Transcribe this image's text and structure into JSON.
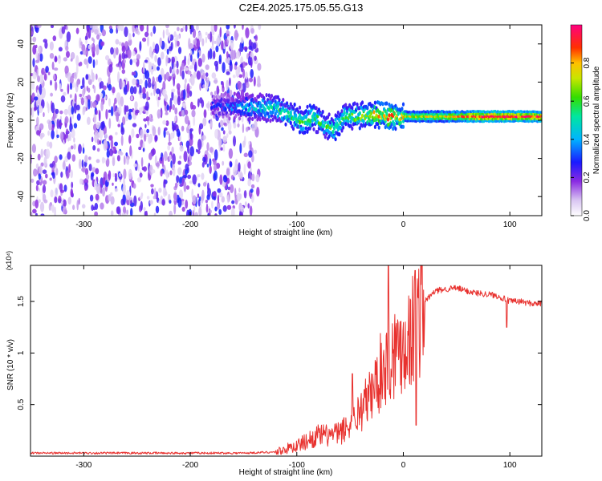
{
  "title": "C2E4.2025.175.05.55.G13",
  "chart_data": [
    {
      "type": "heatmap",
      "xlabel": "Height of straight line (km)",
      "ylabel": "Frequency (Hz)",
      "xlim": [
        -350,
        130
      ],
      "ylim": [
        -50,
        50
      ],
      "xticks": [
        -300,
        -200,
        -100,
        0,
        100
      ],
      "yticks": [
        -40,
        -20,
        0,
        20,
        40
      ],
      "colorbar": {
        "label": "Normalized spectral amplitude",
        "ticks": [
          "0.0",
          "0.2",
          "0.4",
          "0.6",
          "0.8"
        ],
        "range": [
          0,
          1
        ],
        "colormap": "white-violet-blue-cyan-green-yellow-red-magenta"
      },
      "ridge": {
        "x": [
          -180,
          -140,
          -120,
          -105,
          -95,
          -85,
          -75,
          -65,
          -55,
          -45,
          -35,
          -25,
          -15,
          -5,
          10,
          40,
          80,
          130
        ],
        "frequency": [
          8,
          7,
          6,
          3,
          -1,
          2,
          -2,
          -5,
          3,
          2,
          3,
          3,
          2,
          2,
          2,
          2,
          2,
          2
        ],
        "amplitude": [
          0.25,
          0.45,
          0.5,
          0.55,
          0.6,
          0.6,
          0.55,
          0.6,
          0.55,
          0.6,
          0.65,
          0.75,
          0.8,
          0.75,
          0.7,
          0.75,
          0.95,
          0.9
        ]
      },
      "grid": false
    },
    {
      "type": "line",
      "xlabel": "Height of straight line (km)",
      "ylabel": "SNR (10 * v/v)",
      "yscale_label": "(x10⁴)",
      "xlim": [
        -350,
        130
      ],
      "ylim": [
        0,
        1.85
      ],
      "xticks": [
        -300,
        -200,
        -100,
        0,
        100
      ],
      "yticks": [
        0.5,
        1.0,
        1.5
      ],
      "color": "#e8312e",
      "series": [
        {
          "x": [
            -350,
            -300,
            -250,
            -200,
            -150,
            -120,
            -100,
            -90,
            -80,
            -70,
            -60,
            -50,
            -40,
            -30,
            -20,
            -15,
            -10,
            -5,
            0,
            5,
            10,
            15,
            20,
            30,
            40,
            50,
            60,
            70,
            80,
            90,
            100,
            110,
            120,
            130
          ],
          "values": [
            0.03,
            0.03,
            0.03,
            0.03,
            0.03,
            0.04,
            0.1,
            0.15,
            0.2,
            0.2,
            0.22,
            0.3,
            0.45,
            0.6,
            0.85,
            0.9,
            1.0,
            1.05,
            1.1,
            1.15,
            1.25,
            1.4,
            1.5,
            1.6,
            1.62,
            1.63,
            1.6,
            1.58,
            1.57,
            1.55,
            1.5,
            1.5,
            1.48,
            1.48
          ]
        }
      ],
      "spikes": [
        {
          "x": -48,
          "value": 0.8
        },
        {
          "x": -14,
          "value": 1.85
        },
        {
          "x": 11,
          "value": 1.8
        },
        {
          "x": 12,
          "value": 0.3
        },
        {
          "x": 97,
          "value": 1.25
        }
      ],
      "grid": false
    }
  ]
}
